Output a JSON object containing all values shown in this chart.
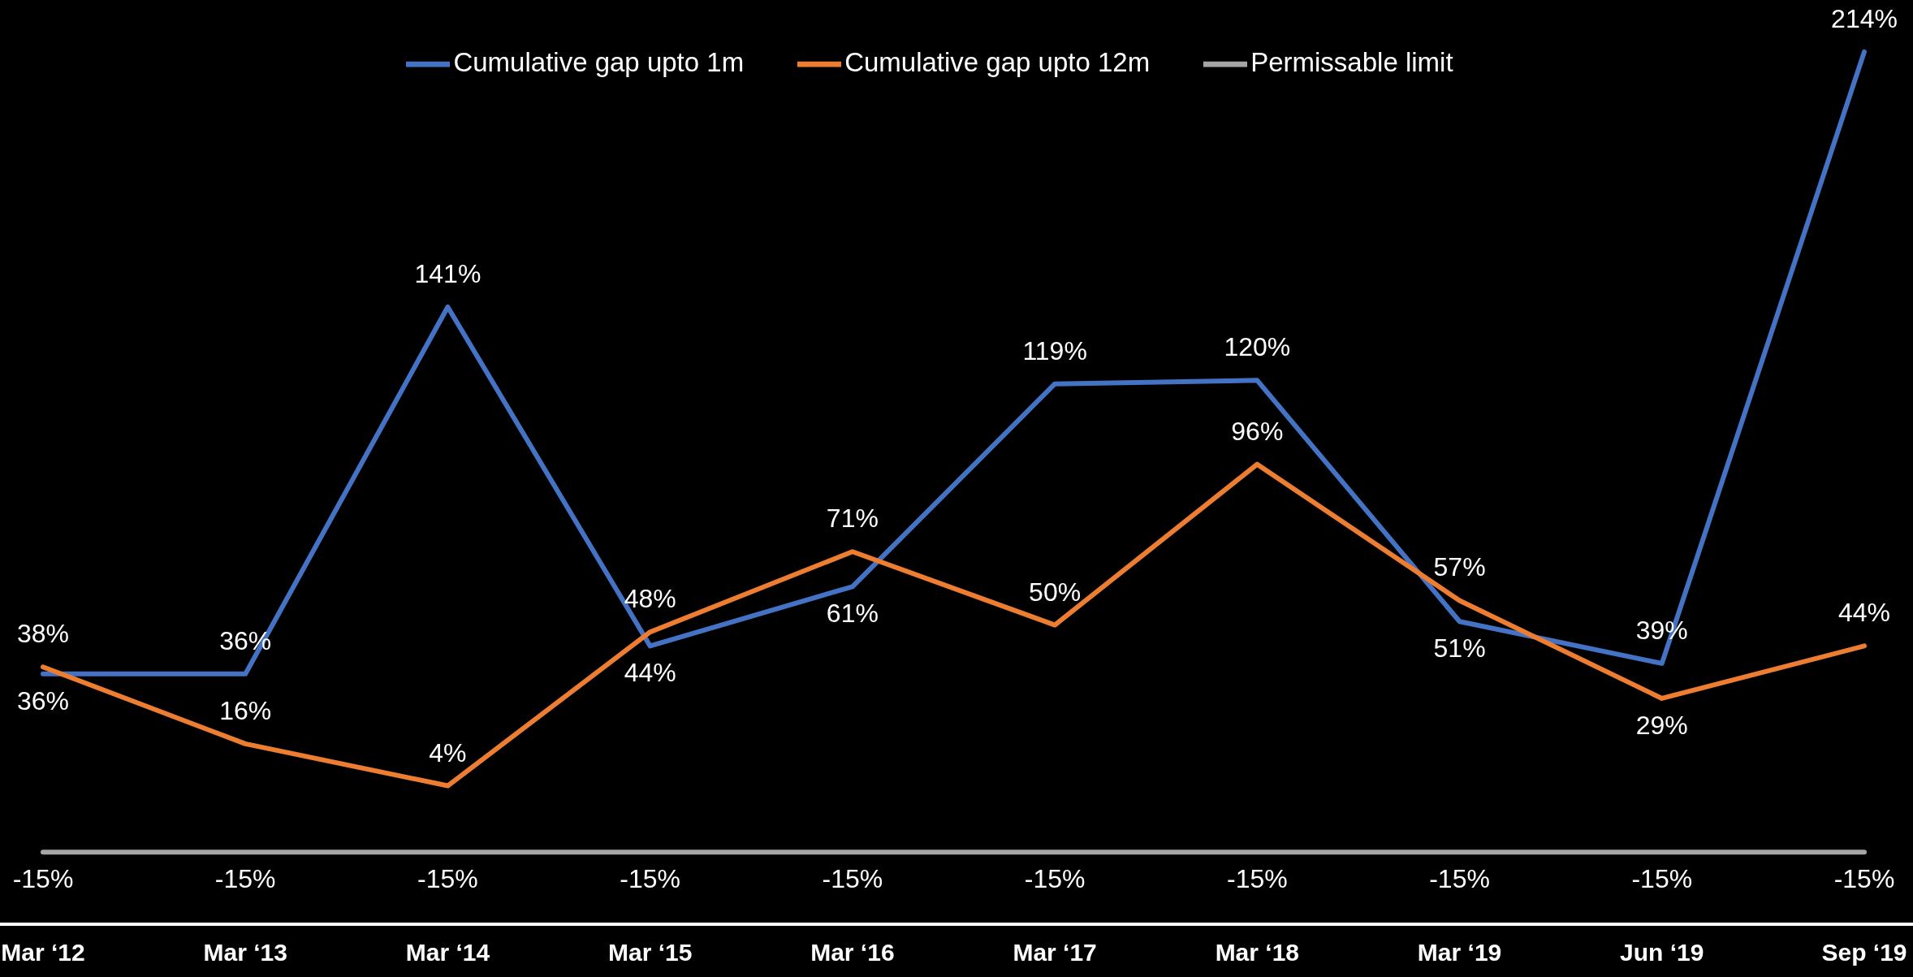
{
  "chart_data": {
    "type": "line",
    "categories": [
      "Mar ‘12",
      "Mar ‘13",
      "Mar ‘14",
      "Mar ‘15",
      "Mar ‘16",
      "Mar ‘17",
      "Mar ‘18",
      "Mar ‘19",
      "Jun ‘19",
      "Sep ‘19"
    ],
    "series": [
      {
        "name": "Cumulative gap upto 1m",
        "color": "#4472c4",
        "values": [
          36,
          36,
          141,
          44,
          61,
          119,
          120,
          51,
          39,
          214
        ],
        "value_labels": [
          "36%",
          "36%",
          "141%",
          "44%",
          "61%",
          "119%",
          "120%",
          "51%",
          "39%",
          "214%"
        ]
      },
      {
        "name": "Cumulative gap upto 12m",
        "color": "#ed7d31",
        "values": [
          38,
          16,
          4,
          48,
          71,
          50,
          96,
          57,
          29,
          44
        ],
        "value_labels": [
          "38%",
          "16%",
          "4%",
          "48%",
          "71%",
          "50%",
          "96%",
          "57%",
          "29%",
          "44%"
        ]
      },
      {
        "name": "Permissable limit",
        "color": "#a5a5a5",
        "values": [
          -15,
          -15,
          -15,
          -15,
          -15,
          -15,
          -15,
          -15,
          -15,
          -15
        ],
        "value_labels": [
          "-15%",
          "-15%",
          "-15%",
          "-15%",
          "-15%",
          "-15%",
          "-15%",
          "-15%",
          "-15%",
          "-15%"
        ]
      }
    ],
    "tick_labels": "x",
    "legend": "top"
  }
}
